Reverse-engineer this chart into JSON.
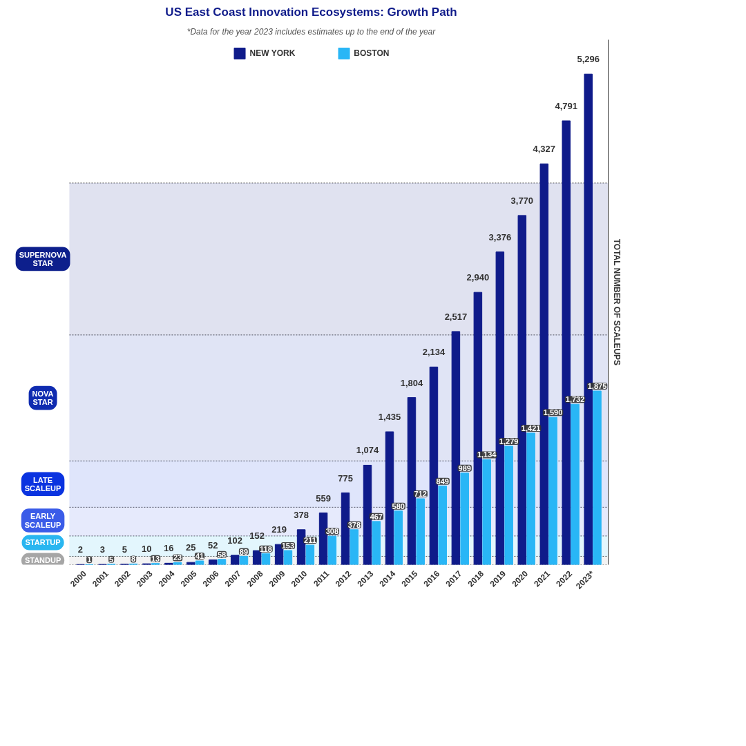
{
  "chart_data": {
    "type": "bar",
    "title": "US East Coast Innovation Ecosystems: Growth Path",
    "subtitle": "*Data for the year 2023 includes estimates up to the end of the year",
    "ylabel": "TOTAL NUMBER OF SCALEUPS",
    "categories": [
      "2000",
      "2001",
      "2002",
      "2003",
      "2004",
      "2005",
      "2006",
      "2007",
      "2008",
      "2009",
      "2010",
      "2011",
      "2012",
      "2013",
      "2014",
      "2015",
      "2016",
      "2017",
      "2018",
      "2019",
      "2020",
      "2021",
      "2022",
      "2023*"
    ],
    "series": [
      {
        "name": "NEW YORK",
        "color": "#0f1b8a",
        "values": [
          2,
          3,
          5,
          10,
          16,
          25,
          52,
          102,
          152,
          219,
          378,
          559,
          775,
          1074,
          1435,
          1804,
          2134,
          2517,
          2940,
          3376,
          3770,
          4327,
          4791,
          5296
        ],
        "value_labels": [
          "2",
          "3",
          "5",
          "10",
          "16",
          "25",
          "52",
          "102",
          "152",
          "219",
          "378",
          "559",
          "775",
          "1,074",
          "1,435",
          "1,804",
          "2,134",
          "2,517",
          "2,940",
          "3,376",
          "3,770",
          "4,327",
          "4,791",
          "5,296"
        ]
      },
      {
        "name": "BOSTON",
        "color": "#29b6f6",
        "values": [
          1,
          5,
          8,
          13,
          23,
          41,
          58,
          89,
          118,
          153,
          211,
          308,
          378,
          467,
          580,
          712,
          849,
          989,
          1134,
          1279,
          1421,
          1590,
          1732,
          1875
        ],
        "value_labels": [
          "1",
          "5",
          "8",
          "13",
          "23",
          "41",
          "58",
          "89",
          "118",
          "153",
          "211",
          "308",
          "378",
          "467",
          "580",
          "712",
          "849",
          "989",
          "1,134",
          "1,279",
          "1,421",
          "1,590",
          "1,732",
          "1,875"
        ]
      }
    ],
    "bands": [
      {
        "axis": "y",
        "from": 0,
        "to": 90,
        "label": "STANDUP",
        "color": "#a6a6a6"
      },
      {
        "axis": "y",
        "from": 90,
        "to": 310,
        "label": "STARTUP",
        "color": "#29b6f0"
      },
      {
        "axis": "y",
        "from": 310,
        "to": 620,
        "label": "EARLY\nSCALEUP",
        "color": "#3b5ce8"
      },
      {
        "axis": "y",
        "from": 620,
        "to": 1120,
        "label": "LATE\nSCALEUP",
        "color": "#0a33e0"
      },
      {
        "axis": "y",
        "from": 1120,
        "to": 2480,
        "label": "NOVA\nSTAR",
        "color": "#0f2bb0"
      },
      {
        "axis": "y",
        "from": 2480,
        "to": 4120,
        "label": "SUPERNOVA\nSTAR",
        "color": "#0d1f8c"
      }
    ],
    "legend": "top",
    "grid": false,
    "tick_labels": "x"
  }
}
